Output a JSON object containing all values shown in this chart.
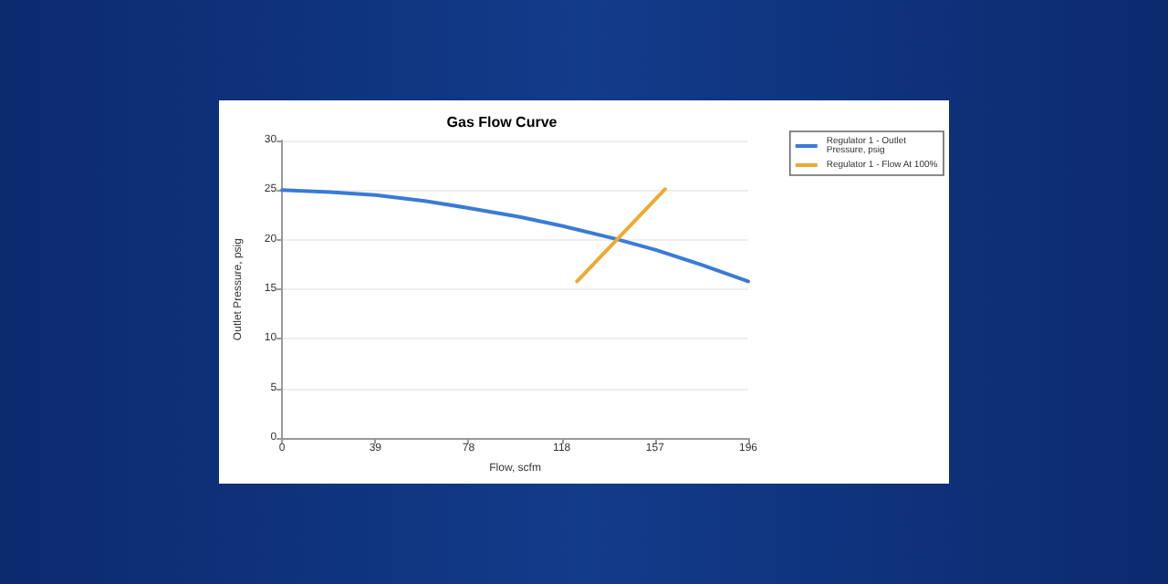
{
  "chart_data": {
    "type": "line",
    "title": "Gas Flow Curve",
    "xlabel": "Flow, scfm",
    "ylabel": "Outlet Pressure, psig",
    "series": [
      {
        "name": "Regulator 1 - Outlet Pressure, psig",
        "color": "#3a7bd5",
        "x": [
          0,
          20,
          39.2,
          60,
          78.4,
          100,
          117.6,
          140,
          156.8,
          176,
          196
        ],
        "values": [
          25,
          24.8,
          24.5,
          23.9,
          23.2,
          22.3,
          21.4,
          20.1,
          19,
          17.5,
          15.8
        ]
      },
      {
        "name": "Regulator 1 - Flow At 100%",
        "color": "#f0a830",
        "x": [
          124,
          161
        ],
        "values": [
          15.8,
          25.1
        ]
      }
    ],
    "xlim": [
      0,
      196
    ],
    "xticks": [
      0,
      {
        "value": 39.2,
        "label": "39"
      },
      {
        "value": 78.4,
        "label": "78"
      },
      {
        "value": 117.6,
        "label": "118"
      },
      {
        "value": 156.8,
        "label": "157"
      },
      196
    ],
    "ylim": [
      0,
      30
    ],
    "yticks": [
      0,
      5,
      10,
      15,
      20,
      25,
      30
    ],
    "grid": "y",
    "legend": "right",
    "marker": "none",
    "line_style": "solid"
  }
}
